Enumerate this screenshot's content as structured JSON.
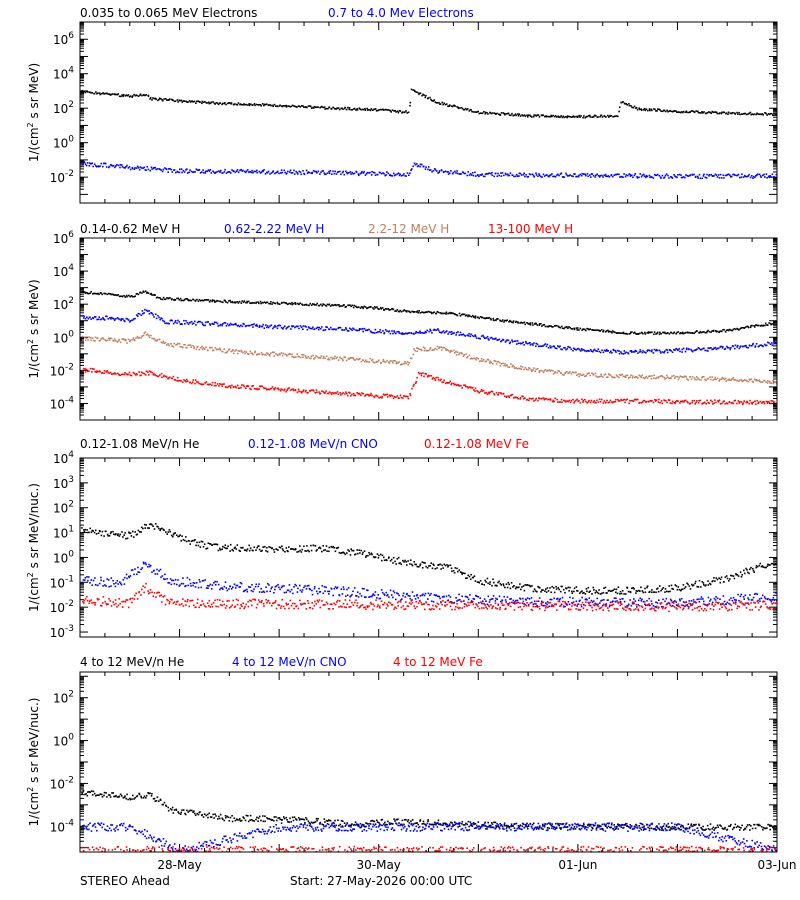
{
  "footer": {
    "left": "STEREO Ahead",
    "start": "Start: 27-May-2026 00:00 UTC"
  },
  "x_ticks": [
    {
      "label": "28-May",
      "day": 1
    },
    {
      "label": "30-May",
      "day": 3
    },
    {
      "label": "01-Jun",
      "day": 5
    },
    {
      "label": "03-Jun",
      "day": 7
    }
  ],
  "chart_data": [
    {
      "type": "scatter",
      "ylabel": "1/(cm² s sr MeV)",
      "ylabel_parts": [
        "1/(cm",
        "2",
        " s sr MeV)"
      ],
      "yscale": "log",
      "ylim_log10": [
        -3.5,
        7
      ],
      "xlim_days": [
        0,
        7
      ],
      "ytick_exponents": [
        -2,
        0,
        2,
        4,
        6
      ],
      "series": [
        {
          "name": "0.035 to 0.065 MeV Electrons",
          "color": "#000000",
          "points": [
            [
              0,
              3.0
            ],
            [
              0.5,
              2.75
            ],
            [
              0.65,
              2.85
            ],
            [
              0.7,
              2.6
            ],
            [
              1.0,
              2.45
            ],
            [
              1.5,
              2.3
            ],
            [
              2.0,
              2.2
            ],
            [
              2.5,
              2.05
            ],
            [
              3.0,
              1.95
            ],
            [
              3.3,
              1.8
            ],
            [
              3.32,
              3.1
            ],
            [
              3.4,
              2.9
            ],
            [
              3.6,
              2.35
            ],
            [
              4.0,
              1.8
            ],
            [
              4.5,
              1.6
            ],
            [
              5.0,
              1.55
            ],
            [
              5.4,
              1.6
            ],
            [
              5.42,
              2.45
            ],
            [
              5.6,
              2.0
            ],
            [
              6.0,
              1.85
            ],
            [
              6.5,
              1.75
            ],
            [
              7.0,
              1.7
            ]
          ]
        },
        {
          "name": "0.7 to 4.0 Mev Electrons",
          "color": "#0000ff",
          "points": [
            [
              0,
              -1.15
            ],
            [
              0.5,
              -1.4
            ],
            [
              1.0,
              -1.6
            ],
            [
              2.0,
              -1.65
            ],
            [
              3.0,
              -1.75
            ],
            [
              3.3,
              -1.8
            ],
            [
              3.35,
              -1.2
            ],
            [
              3.6,
              -1.65
            ],
            [
              4.0,
              -1.8
            ],
            [
              5.0,
              -1.85
            ],
            [
              6.0,
              -1.9
            ],
            [
              7.0,
              -1.9
            ]
          ]
        }
      ]
    },
    {
      "type": "scatter",
      "ylabel": "1/(cm² s sr MeV)",
      "ylabel_parts": [
        "1/(cm",
        "2",
        " s sr MeV)"
      ],
      "yscale": "log",
      "ylim_log10": [
        -5,
        6
      ],
      "xlim_days": [
        0,
        7
      ],
      "ytick_exponents": [
        -4,
        -2,
        0,
        2,
        4,
        6
      ],
      "series": [
        {
          "name": "0.14-0.62 MeV H",
          "color": "#000000",
          "points": [
            [
              0,
              2.8
            ],
            [
              0.5,
              2.5
            ],
            [
              0.65,
              2.8
            ],
            [
              0.8,
              2.4
            ],
            [
              1.5,
              2.2
            ],
            [
              2.5,
              2.0
            ],
            [
              3.0,
              1.8
            ],
            [
              3.3,
              1.6
            ],
            [
              3.7,
              1.5
            ],
            [
              4.3,
              1.0
            ],
            [
              5.0,
              0.55
            ],
            [
              5.5,
              0.3
            ],
            [
              6.0,
              0.3
            ],
            [
              6.5,
              0.45
            ],
            [
              7.0,
              0.95
            ]
          ]
        },
        {
          "name": "0.62-2.22 MeV H",
          "color": "#0000ff",
          "points": [
            [
              0,
              1.3
            ],
            [
              0.5,
              1.1
            ],
            [
              0.65,
              1.65
            ],
            [
              0.85,
              1.0
            ],
            [
              1.5,
              0.8
            ],
            [
              2.5,
              0.55
            ],
            [
              3.0,
              0.4
            ],
            [
              3.3,
              0.3
            ],
            [
              3.6,
              0.45
            ],
            [
              4.3,
              -0.2
            ],
            [
              5.0,
              -0.7
            ],
            [
              5.5,
              -0.85
            ],
            [
              6.0,
              -0.75
            ],
            [
              6.5,
              -0.6
            ],
            [
              7.0,
              -0.3
            ]
          ]
        },
        {
          "name": "2.2-12 MeV H",
          "color": "#c08060",
          "points": [
            [
              0,
              0.0
            ],
            [
              0.5,
              -0.2
            ],
            [
              0.65,
              0.25
            ],
            [
              0.85,
              -0.35
            ],
            [
              1.5,
              -0.8
            ],
            [
              2.5,
              -1.2
            ],
            [
              3.0,
              -1.4
            ],
            [
              3.3,
              -1.55
            ],
            [
              3.35,
              -0.7
            ],
            [
              3.6,
              -0.6
            ],
            [
              4.0,
              -1.3
            ],
            [
              4.5,
              -1.9
            ],
            [
              5.0,
              -2.2
            ],
            [
              5.5,
              -2.3
            ],
            [
              6.0,
              -2.4
            ],
            [
              6.5,
              -2.5
            ],
            [
              7.0,
              -2.7
            ]
          ]
        },
        {
          "name": "13-100 MeV H",
          "color": "#ff0000",
          "points": [
            [
              0,
              -1.9
            ],
            [
              0.5,
              -2.2
            ],
            [
              0.7,
              -2.1
            ],
            [
              1.0,
              -2.55
            ],
            [
              1.5,
              -2.9
            ],
            [
              2.5,
              -3.3
            ],
            [
              3.0,
              -3.5
            ],
            [
              3.3,
              -3.55
            ],
            [
              3.4,
              -2.1
            ],
            [
              3.7,
              -2.7
            ],
            [
              4.0,
              -3.2
            ],
            [
              4.5,
              -3.7
            ],
            [
              5.0,
              -3.8
            ],
            [
              6.0,
              -3.85
            ],
            [
              7.0,
              -3.9
            ]
          ]
        }
      ]
    },
    {
      "type": "scatter",
      "ylabel": "1/(cm² s sr MeV/nuc.)",
      "ylabel_parts": [
        "1/(cm",
        "2",
        " s sr MeV/nuc.)"
      ],
      "yscale": "log",
      "ylim_log10": [
        -3.2,
        4
      ],
      "xlim_days": [
        0,
        7
      ],
      "ytick_exponents": [
        -3,
        -2,
        -1,
        0,
        1,
        2,
        3,
        4
      ],
      "series": [
        {
          "name": "0.12-1.08 MeV/n He",
          "color": "#000000",
          "points": [
            [
              0,
              1.1
            ],
            [
              0.5,
              0.9
            ],
            [
              0.7,
              1.35
            ],
            [
              1.0,
              0.8
            ],
            [
              1.3,
              0.45
            ],
            [
              2.0,
              0.35
            ],
            [
              2.4,
              0.4
            ],
            [
              2.8,
              0.2
            ],
            [
              3.3,
              -0.2
            ],
            [
              3.7,
              -0.4
            ],
            [
              4.0,
              -0.9
            ],
            [
              4.5,
              -1.2
            ],
            [
              5.0,
              -1.3
            ],
            [
              5.5,
              -1.3
            ],
            [
              6.0,
              -1.2
            ],
            [
              6.5,
              -0.8
            ],
            [
              7.0,
              -0.1
            ]
          ]
        },
        {
          "name": "0.12-1.08 MeV/n CNO",
          "color": "#0000ff",
          "points": [
            [
              0,
              -0.85
            ],
            [
              0.4,
              -1.0
            ],
            [
              0.65,
              -0.2
            ],
            [
              0.9,
              -0.9
            ],
            [
              1.5,
              -1.15
            ],
            [
              2.5,
              -1.3
            ],
            [
              3.0,
              -1.45
            ],
            [
              3.5,
              -1.6
            ],
            [
              4.5,
              -1.75
            ],
            [
              6.0,
              -1.8
            ],
            [
              7.0,
              -1.55
            ]
          ]
        },
        {
          "name": "0.12-1.08 MeV Fe",
          "color": "#ff0000",
          "points": [
            [
              0,
              -1.7
            ],
            [
              0.5,
              -1.8
            ],
            [
              0.65,
              -1.2
            ],
            [
              0.9,
              -1.8
            ],
            [
              2.0,
              -1.85
            ],
            [
              4.0,
              -1.9
            ],
            [
              6.0,
              -1.95
            ],
            [
              7.0,
              -1.9
            ]
          ]
        }
      ]
    },
    {
      "type": "scatter",
      "ylabel": "1/(cm² s sr MeV/nuc.)",
      "ylabel_parts": [
        "1/(cm",
        "2",
        " s sr MeV/nuc.)"
      ],
      "yscale": "log",
      "ylim_log10": [
        -5.2,
        3.2
      ],
      "xlim_days": [
        0,
        7
      ],
      "ytick_exponents": [
        -4,
        -2,
        0,
        2
      ],
      "series": [
        {
          "name": "4 to 12 MeV/n He",
          "color": "#000000",
          "points": [
            [
              0,
              -2.4
            ],
            [
              0.5,
              -2.6
            ],
            [
              0.7,
              -2.5
            ],
            [
              0.9,
              -3.2
            ],
            [
              1.5,
              -3.6
            ],
            [
              2.0,
              -3.6
            ],
            [
              2.8,
              -3.9
            ],
            [
              3.0,
              -3.75
            ],
            [
              3.5,
              -3.8
            ],
            [
              4.0,
              -3.9
            ],
            [
              5.0,
              -4.0
            ],
            [
              6.0,
              -4.0
            ],
            [
              7.0,
              -4.0
            ]
          ]
        },
        {
          "name": "4 to 12 MeV/n CNO",
          "color": "#0000ff",
          "points": [
            [
              0,
              -4.0
            ],
            [
              0.5,
              -4.0
            ],
            [
              1.0,
              -5.1
            ],
            [
              2.0,
              -4.0
            ],
            [
              4.0,
              -4.0
            ],
            [
              6.0,
              -4.0
            ],
            [
              7.0,
              -5.1
            ]
          ]
        },
        {
          "name": "4 to 12 MeV Fe",
          "color": "#ff0000",
          "points": [
            [
              0,
              -5.1
            ],
            [
              3.0,
              -5.1
            ],
            [
              7.0,
              -5.1
            ]
          ]
        }
      ]
    }
  ]
}
